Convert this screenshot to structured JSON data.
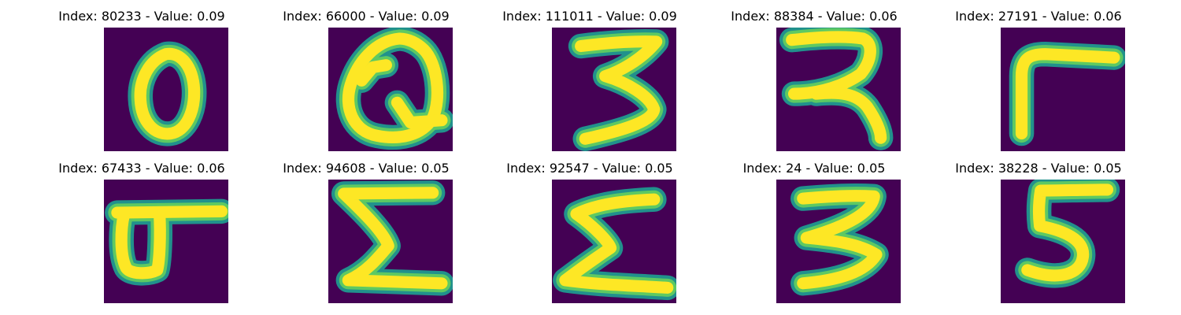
{
  "colors": {
    "background": "#440154",
    "edge": "#21918c",
    "mid": "#5ec962",
    "core": "#fde725"
  },
  "panels": [
    {
      "index": "80233",
      "value": "0.09",
      "title": "Index: 80233 - Value: 0.09",
      "glyph": "0"
    },
    {
      "index": "66000",
      "value": "0.09",
      "title": "Index: 66000 - Value: 0.09",
      "glyph": "Q"
    },
    {
      "index": "111011",
      "value": "0.09",
      "title": "Index: 111011 - Value: 0.09",
      "glyph": "3"
    },
    {
      "index": "88384",
      "value": "0.06",
      "title": "Index: 88384 - Value: 0.06",
      "glyph": "r"
    },
    {
      "index": "27191",
      "value": "0.06",
      "title": "Index: 27191 - Value: 0.06",
      "glyph": "r"
    },
    {
      "index": "67433",
      "value": "0.06",
      "title": "Index: 67433 - Value: 0.06",
      "glyph": "d"
    },
    {
      "index": "94608",
      "value": "0.05",
      "title": "Index: 94608 - Value: 0.05",
      "glyph": "Σ"
    },
    {
      "index": "92547",
      "value": "0.05",
      "title": "Index: 92547 - Value: 0.05",
      "glyph": "Σ"
    },
    {
      "index": "24",
      "value": "0.05",
      "title": "Index: 24 - Value: 0.05",
      "glyph": "3"
    },
    {
      "index": "38228",
      "value": "0.05",
      "title": "Index: 38228 - Value: 0.05",
      "glyph": "5"
    }
  ]
}
